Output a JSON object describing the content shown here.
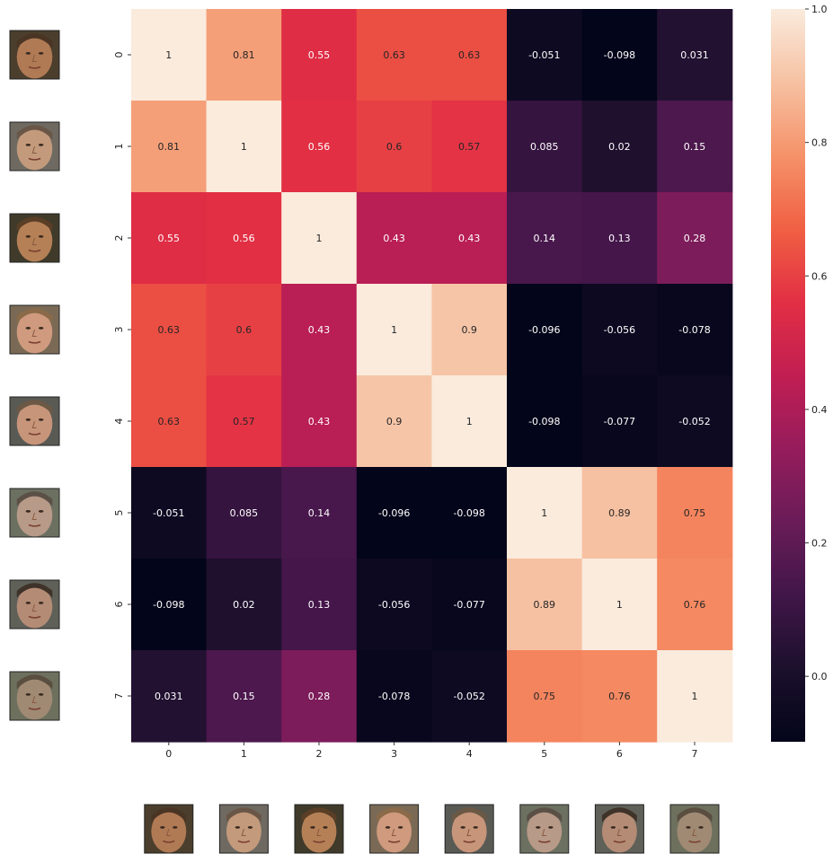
{
  "chart_data": {
    "type": "heatmap",
    "title": "",
    "xlabel": "",
    "ylabel": "",
    "x_categories": [
      "0",
      "1",
      "2",
      "3",
      "4",
      "5",
      "6",
      "7"
    ],
    "y_categories": [
      "0",
      "1",
      "2",
      "3",
      "4",
      "5",
      "6",
      "7"
    ],
    "values": [
      [
        1,
        0.81,
        0.55,
        0.63,
        0.63,
        -0.051,
        -0.098,
        0.031
      ],
      [
        0.81,
        1,
        0.56,
        0.6,
        0.57,
        0.085,
        0.02,
        0.15
      ],
      [
        0.55,
        0.56,
        1,
        0.43,
        0.43,
        0.14,
        0.13,
        0.28
      ],
      [
        0.63,
        0.6,
        0.43,
        1,
        0.9,
        -0.096,
        -0.056,
        -0.078
      ],
      [
        0.63,
        0.57,
        0.43,
        0.9,
        1,
        -0.098,
        -0.077,
        -0.052
      ],
      [
        -0.051,
        0.085,
        0.14,
        -0.096,
        -0.098,
        1,
        0.89,
        0.75
      ],
      [
        -0.098,
        0.02,
        0.13,
        -0.056,
        -0.077,
        0.89,
        1,
        0.76
      ],
      [
        0.031,
        0.15,
        0.28,
        -0.078,
        -0.052,
        0.75,
        0.76,
        1
      ]
    ],
    "annotations": [
      [
        "1",
        "0.81",
        "0.55",
        "0.63",
        "0.63",
        "-0.051",
        "-0.098",
        "0.031"
      ],
      [
        "0.81",
        "1",
        "0.56",
        "0.6",
        "0.57",
        "0.085",
        "0.02",
        "0.15"
      ],
      [
        "0.55",
        "0.56",
        "1",
        "0.43",
        "0.43",
        "0.14",
        "0.13",
        "0.28"
      ],
      [
        "0.63",
        "0.6",
        "0.43",
        "1",
        "0.9",
        "-0.096",
        "-0.056",
        "-0.078"
      ],
      [
        "0.63",
        "0.57",
        "0.43",
        "0.9",
        "1",
        "-0.098",
        "-0.077",
        "-0.052"
      ],
      [
        "-0.051",
        "0.085",
        "0.14",
        "-0.096",
        "-0.098",
        "1",
        "0.89",
        "0.75"
      ],
      [
        "-0.098",
        "0.02",
        "0.13",
        "-0.056",
        "-0.077",
        "0.89",
        "1",
        "0.76"
      ],
      [
        "0.031",
        "0.15",
        "0.28",
        "-0.078",
        "-0.052",
        "0.75",
        "0.76",
        "1"
      ]
    ],
    "colormap": "rocket",
    "vmin": -0.098,
    "vmax": 1,
    "colorbar": {
      "position": "right",
      "ticks": [
        0.0,
        0.2,
        0.4,
        0.6,
        0.8,
        1.0
      ],
      "tick_labels": [
        "0.0",
        "0.2",
        "0.4",
        "0.6",
        "0.8",
        "1.0"
      ]
    },
    "grid": false,
    "face_thumbnails": {
      "rows": [
        "face-0",
        "face-1",
        "face-2",
        "face-3",
        "face-4",
        "face-5",
        "face-6",
        "face-7"
      ],
      "columns": [
        "face-0",
        "face-1",
        "face-2",
        "face-3",
        "face-4",
        "face-5",
        "face-6",
        "face-7"
      ],
      "placement": "left and bottom"
    }
  }
}
